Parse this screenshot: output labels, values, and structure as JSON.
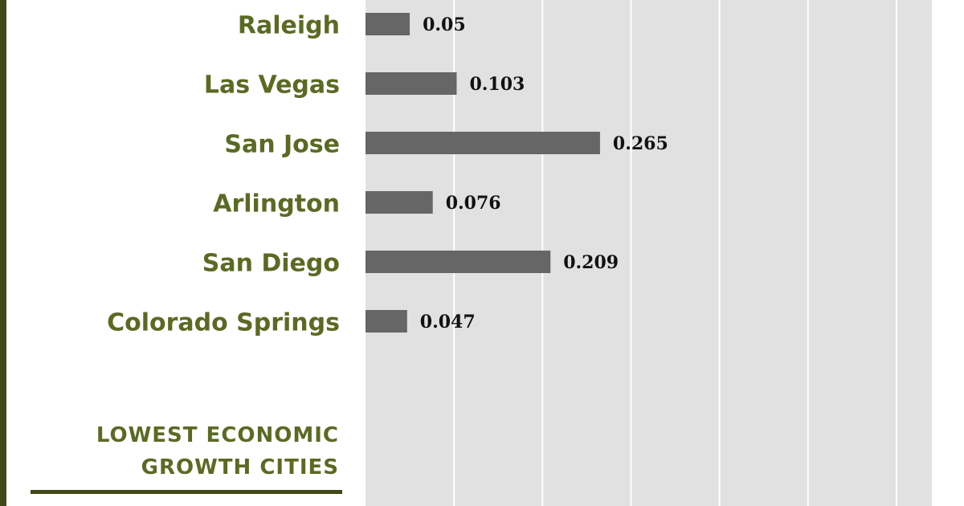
{
  "chart_data": {
    "type": "bar",
    "orientation": "horizontal",
    "categories": [
      "Raleigh",
      "Las Vegas",
      "San Jose",
      "Arlington",
      "San Diego",
      "Colorado Springs"
    ],
    "values": [
      0.05,
      0.103,
      0.265,
      0.076,
      0.209,
      0.047
    ],
    "color": "#666666",
    "xlim": [
      0,
      0.64
    ],
    "xticks": [
      0.1,
      0.2,
      0.3,
      0.4,
      0.5,
      0.6
    ],
    "grid": true,
    "section_heading": "LOWEST ECONOMIC GROWTH CITIES"
  }
}
